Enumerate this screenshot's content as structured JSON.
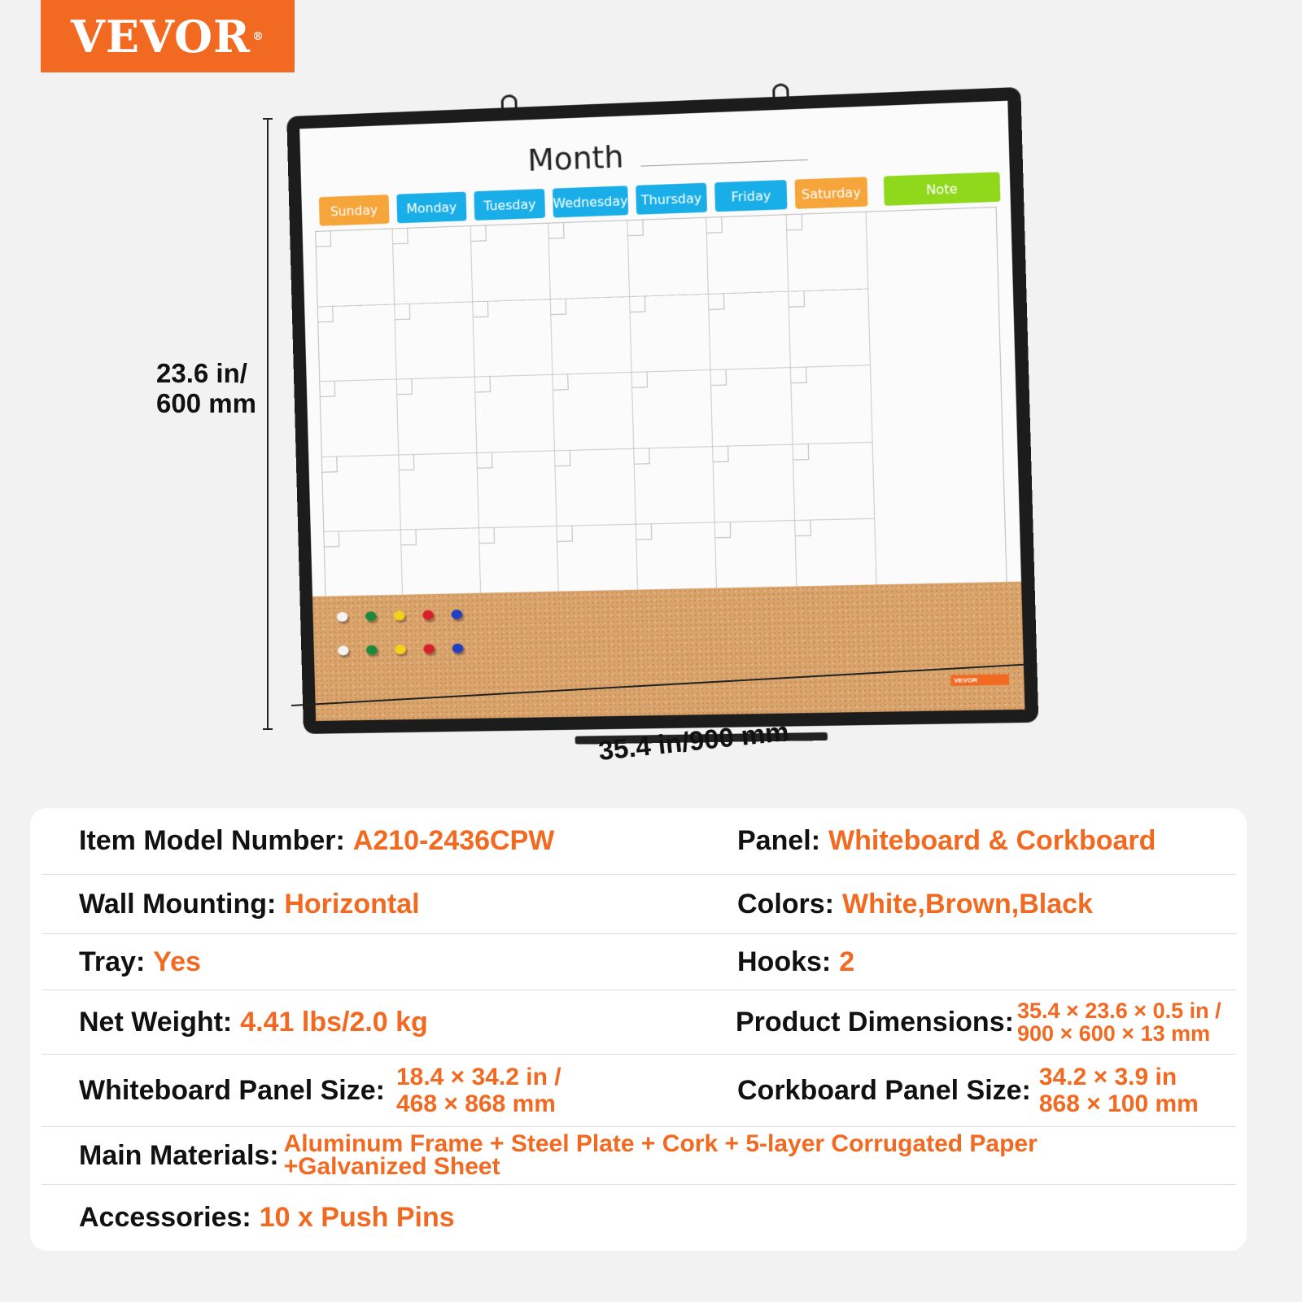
{
  "brand": {
    "logo": "VEVOR",
    "reg": "®",
    "color": "#f26a21"
  },
  "board": {
    "title": "Month",
    "days": [
      {
        "label": "Sunday",
        "color": "#f5a53a"
      },
      {
        "label": "Monday",
        "color": "#1aaee8"
      },
      {
        "label": "Tuesday",
        "color": "#1aaee8"
      },
      {
        "label": "Wednesday",
        "color": "#1aaee8"
      },
      {
        "label": "Thursday",
        "color": "#1aaee8"
      },
      {
        "label": "Friday",
        "color": "#1aaee8"
      },
      {
        "label": "Saturday",
        "color": "#f5a53a"
      }
    ],
    "note": {
      "label": "Note",
      "color": "#8fd81c"
    },
    "pin_colors": [
      "#f3f3f3",
      "#1a8a3a",
      "#f3d21a",
      "#d8202a",
      "#2040c0",
      "#f3f3f3",
      "#1a8a3a",
      "#f3d21a",
      "#d8202a",
      "#2040c0"
    ],
    "tag": "VEVOR"
  },
  "dimensions": {
    "height": "23.6 in/\n600 mm",
    "height_l1": "23.6 in/",
    "height_l2": "600 mm",
    "width": "35.4 in/900 mm"
  },
  "specs": {
    "model": {
      "key": "Item Model Number:",
      "value": "A210-2436CPW"
    },
    "panel": {
      "key": "Panel:",
      "value": "Whiteboard & Corkboard"
    },
    "mounting": {
      "key": "Wall Mounting:",
      "value": "Horizontal"
    },
    "colors": {
      "key": "Colors:",
      "value": "White,Brown,Black"
    },
    "tray": {
      "key": "Tray:",
      "value": "Yes"
    },
    "hooks": {
      "key": "Hooks:",
      "value": "2"
    },
    "weight": {
      "key": "Net Weight:",
      "value": "4.41 lbs/2.0 kg"
    },
    "product_dims": {
      "key": "Product Dimensions:",
      "value_l1": "35.4 × 23.6 ×  0.5 in /",
      "value_l2": "900 × 600 × 13 mm"
    },
    "whiteboard_size": {
      "key": "Whiteboard Panel Size:",
      "value_l1": "18.4 × 34.2 in /",
      "value_l2": "468 × 868 mm"
    },
    "corkboard_size": {
      "key": "Corkboard Panel Size:",
      "value_l1": "34.2 × 3.9 in",
      "value_l2": "868 × 100 mm"
    },
    "materials": {
      "key": "Main Materials:",
      "value_l1": "Aluminum Frame + Steel Plate + Cork + 5-layer Corrugated Paper",
      "value_l2": "+Galvanized Sheet"
    },
    "accessories": {
      "key": "Accessories:",
      "value": "10 x Push Pins"
    }
  }
}
